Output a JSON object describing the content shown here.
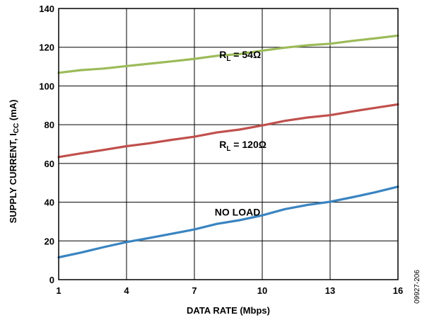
{
  "chart_data": {
    "type": "line",
    "title": "",
    "xlabel": "DATA RATE (Mbps)",
    "ylabel": {
      "main": "SUPPLY CURRENT, I",
      "sub": "CC",
      "unit": " (mA)"
    },
    "xlim": [
      1,
      16
    ],
    "ylim": [
      0,
      140
    ],
    "xticks": [
      1,
      4,
      7,
      10,
      13,
      16
    ],
    "yticks": [
      0,
      20,
      40,
      60,
      80,
      100,
      120,
      140
    ],
    "grid": true,
    "series": [
      {
        "annotation": {
          "main": "R",
          "sub": "L",
          "rest": " = 54Ω",
          "at": [
            8.1,
            114.5
          ]
        },
        "color": "#9bbb59",
        "x": [
          1,
          2,
          3,
          4,
          5,
          6,
          7,
          8,
          9,
          10,
          11,
          12,
          13,
          14,
          15,
          16
        ],
        "y": [
          106.8,
          108.2,
          109.0,
          110.3,
          111.5,
          112.7,
          114.0,
          115.6,
          116.5,
          118.2,
          119.8,
          121.0,
          121.8,
          123.3,
          124.6,
          126.0
        ]
      },
      {
        "annotation": {
          "main": "R",
          "sub": "L",
          "rest": " = 120Ω",
          "at": [
            8.1,
            68.0
          ]
        },
        "color": "#c0504d",
        "x": [
          1,
          2,
          3,
          4,
          5,
          6,
          7,
          8,
          9,
          10,
          11,
          12,
          13,
          14,
          15,
          16
        ],
        "y": [
          63.3,
          65.2,
          67.0,
          68.9,
          70.4,
          72.2,
          73.8,
          76.0,
          77.5,
          79.6,
          82.0,
          83.7,
          84.9,
          86.9,
          88.7,
          90.5
        ]
      },
      {
        "annotation": {
          "main": "NO LOAD",
          "sub": "",
          "rest": "",
          "at": [
            7.9,
            33.0
          ]
        },
        "color": "#3a84c1",
        "x": [
          1,
          2,
          3,
          4,
          5,
          6,
          7,
          8,
          9,
          10,
          11,
          12,
          13,
          14,
          15,
          16
        ],
        "y": [
          11.5,
          14.0,
          16.8,
          19.4,
          21.5,
          23.7,
          25.9,
          28.8,
          30.7,
          33.2,
          36.4,
          38.6,
          40.2,
          42.6,
          45.1,
          48.0
        ]
      }
    ]
  },
  "figure_id": "09927-206"
}
